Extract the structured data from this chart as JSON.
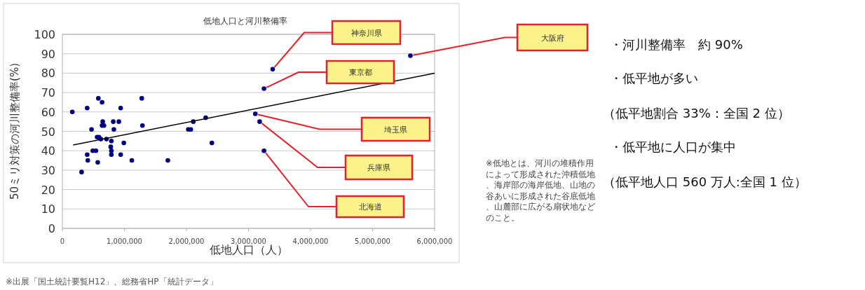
{
  "chart_data": {
    "type": "scatter",
    "title": "低地人口と河川整備率",
    "xlabel": "低地人口（人）",
    "ylabel": "50ミリ対策の河川整備率(%)",
    "xlim": [
      0,
      6000000
    ],
    "ylim": [
      0,
      100
    ],
    "xticks": [
      0,
      {
        "value": 1000000,
        "label": "1,000,000"
      },
      {
        "value": 2000000,
        "label": "2,000,000"
      },
      {
        "value": 3000000,
        "label": "3,000,000"
      },
      {
        "value": 4000000,
        "label": "4,000,000"
      },
      {
        "value": 5000000,
        "label": "5,000,000"
      },
      {
        "value": 6000000,
        "label": "6,000,000"
      }
    ],
    "yticks": [
      0,
      10,
      20,
      30,
      40,
      50,
      60,
      70,
      80,
      90,
      100
    ],
    "grid": "y",
    "series": [
      {
        "marker": "circle",
        "color": "#000080",
        "x": [
          160000,
          310000,
          400000,
          470000,
          400000,
          410000,
          490000,
          540000,
          570000,
          580000,
          640000,
          560000,
          590000,
          620000,
          710000,
          650000,
          670000,
          640000,
          790000,
          780000,
          790000,
          790000,
          820000,
          830000,
          910000,
          940000,
          940000,
          990000,
          1120000,
          1280000,
          1290000,
          1700000,
          2030000,
          2070000,
          2110000,
          2310000,
          2410000,
          3390000,
          3250000,
          3110000,
          3180000,
          3250000,
          5610000
        ],
        "values": [
          60,
          29,
          62,
          51,
          38,
          35,
          40,
          40,
          34,
          67,
          65,
          47,
          47,
          46,
          46,
          55,
          53,
          53,
          45,
          42,
          40,
          38,
          55,
          51,
          55,
          62,
          38,
          44,
          35,
          67,
          53,
          35,
          51,
          51,
          55,
          57,
          44,
          82,
          72,
          59,
          55,
          40,
          89
        ]
      },
      {
        "type": "line",
        "marker": "none",
        "color": "#000000",
        "x": [
          173000,
          6000000
        ],
        "values": [
          43,
          80
        ]
      }
    ],
    "annotations": [
      "神奈川県",
      "東京都",
      "大阪府",
      "埼玉県",
      "兵庫県",
      "北海道",
      "・河川整備率　約 90%",
      "・低平地が多い",
      "（低平地割合 33%：全国 2 位）",
      "・低平地に人口が集中",
      "（低平地人口 560 万人:全国 1 位）",
      "※低地とは、河川の堆積作用によって形成された沖積低地、海岸部の海岸低地、山地の谷あいに形成された谷底低地、山麓部に広がる扇状地などのこと。",
      "※出展「国土統計要覧H12」、総務省HP「統計データ」"
    ]
  }
}
